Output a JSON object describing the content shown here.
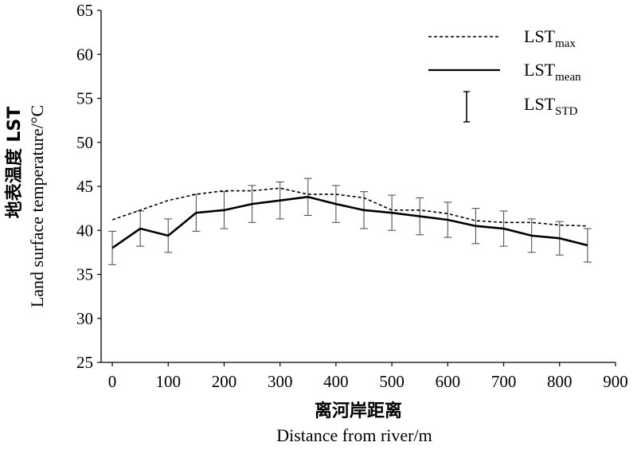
{
  "chart_data": {
    "type": "line",
    "x": [
      0,
      50,
      100,
      150,
      200,
      250,
      300,
      350,
      400,
      450,
      500,
      550,
      600,
      650,
      700,
      750,
      800,
      850
    ],
    "series": [
      {
        "name": "LST_max",
        "style": "dashed",
        "values": [
          41.2,
          42.3,
          43.4,
          44.1,
          44.5,
          44.5,
          44.8,
          44.1,
          44.1,
          43.7,
          42.3,
          42.3,
          41.9,
          41.1,
          40.9,
          40.9,
          40.6,
          40.5
        ]
      },
      {
        "name": "LST_mean",
        "style": "solid",
        "values": [
          38.0,
          40.2,
          39.4,
          42.0,
          42.3,
          43.0,
          43.4,
          43.8,
          43.0,
          42.3,
          42.0,
          41.6,
          41.2,
          40.5,
          40.2,
          39.4,
          39.1,
          38.3
        ]
      },
      {
        "name": "LST_STD",
        "style": "errorbar",
        "values": [
          1.9,
          2.0,
          1.9,
          2.1,
          2.1,
          2.1,
          2.1,
          2.1,
          2.1,
          2.1,
          2.0,
          2.1,
          2.0,
          2.0,
          2.0,
          1.9,
          1.9,
          1.9
        ]
      }
    ],
    "xlim": [
      -20,
      900
    ],
    "ylim": [
      25,
      65
    ],
    "xticks": [
      0,
      100,
      200,
      300,
      400,
      500,
      600,
      700,
      800,
      900
    ],
    "yticks": [
      25,
      30,
      35,
      40,
      45,
      50,
      55,
      60,
      65
    ],
    "ylabel_cn": "地表温度 LST",
    "ylabel_en": "Land surface temperature/°C",
    "xlabel_cn": "离河岸距离",
    "xlabel_en": "Distance from river/m",
    "legend": {
      "position": "top-right",
      "items": [
        {
          "base": "LST",
          "sub": "max",
          "style": "dashed"
        },
        {
          "base": "LST",
          "sub": "mean",
          "style": "solid"
        },
        {
          "base": "LST",
          "sub": "STD",
          "style": "errorbar"
        }
      ]
    },
    "grid": false
  }
}
